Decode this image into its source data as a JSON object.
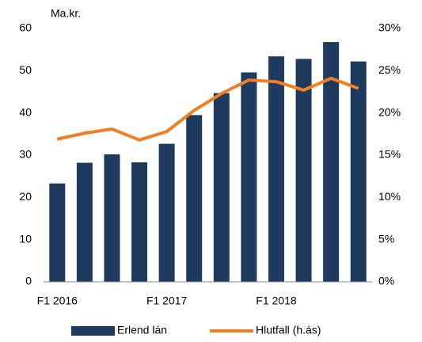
{
  "chart_data": {
    "type": "bar_line",
    "ylabel": "Ma.kr.",
    "categories": [
      "F1 2016",
      null,
      null,
      null,
      "F1 2017",
      null,
      null,
      null,
      "F1 2018",
      null,
      null,
      null
    ],
    "series": [
      {
        "name": "Erlend lán",
        "type": "bar",
        "color": "#1f3a5f",
        "values": [
          23.3,
          28.2,
          30.2,
          28.3,
          32.7,
          39.5,
          44.7,
          49.6,
          53.4,
          52.8,
          56.8,
          52.2
        ]
      },
      {
        "name": "Hlutfall (h.ás)",
        "type": "line",
        "axis": "y2",
        "color": "#f07f23",
        "values": [
          16.9,
          17.6,
          18.1,
          16.8,
          17.8,
          20.3,
          22.3,
          23.9,
          23.7,
          22.7,
          24.1,
          22.9
        ]
      }
    ],
    "ylim": [
      0,
      60
    ],
    "yticks": [
      0,
      10,
      20,
      30,
      40,
      50,
      60
    ],
    "y2lim": [
      0,
      30
    ],
    "y2ticks": [
      {
        "value": 0,
        "label": "0%"
      },
      {
        "value": 5,
        "label": "5%"
      },
      {
        "value": 10,
        "label": "10%"
      },
      {
        "value": 15,
        "label": "15%"
      },
      {
        "value": 20,
        "label": "20%"
      },
      {
        "value": 25,
        "label": "25%"
      },
      {
        "value": 30,
        "label": "30%"
      }
    ],
    "legend": "bottom",
    "grid": false
  }
}
